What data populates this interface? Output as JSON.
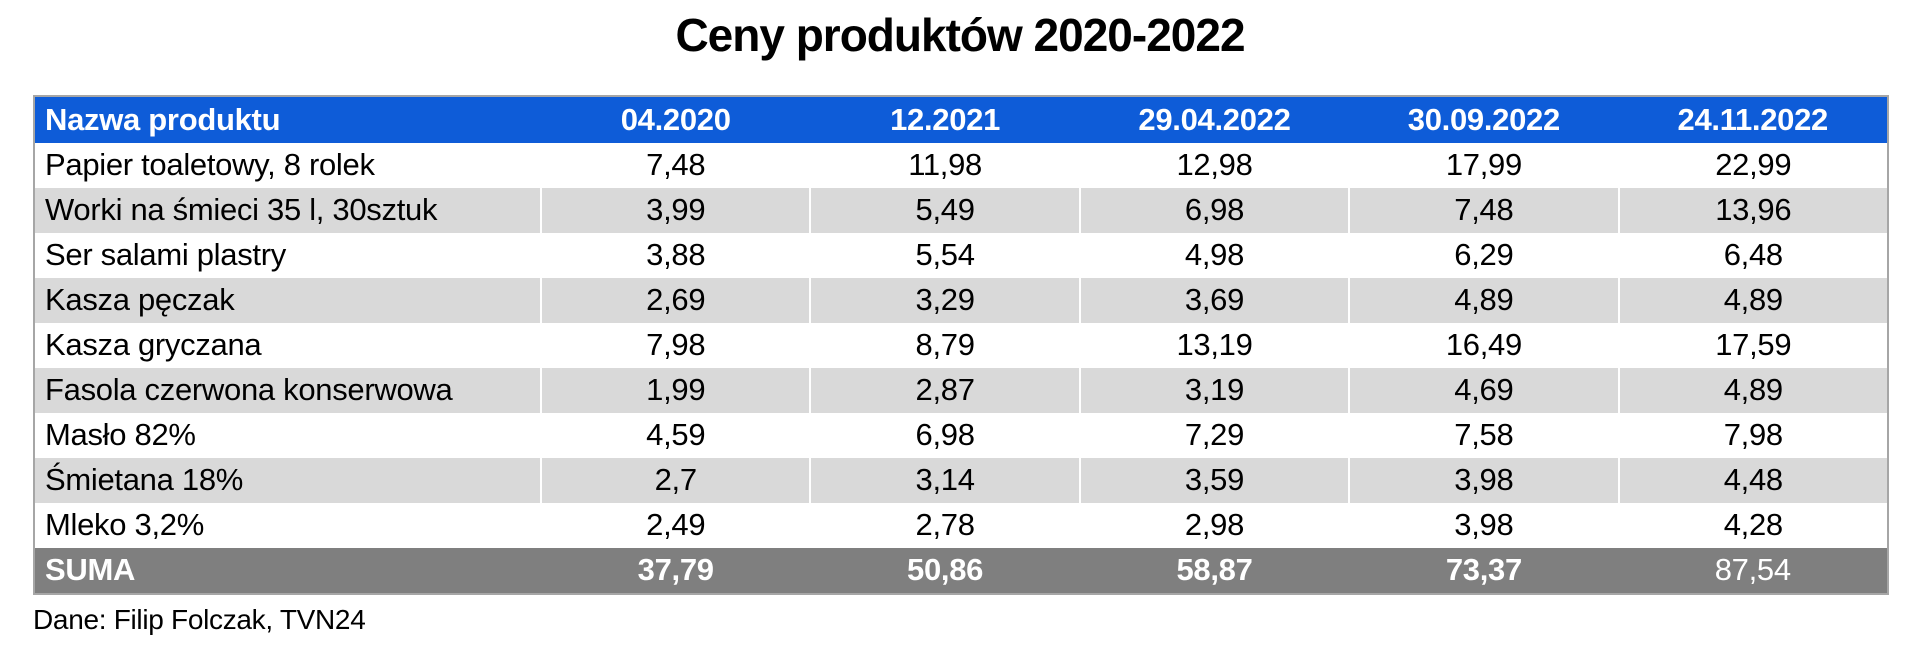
{
  "page": {
    "title": "Ceny produktów 2020-2022",
    "source": "Dane: Filip Folczak, TVN24"
  },
  "colors": {
    "header_bg": "#0e5cd8",
    "header_text": "#ffffff",
    "row_bg": "#ffffff",
    "row_alt_bg": "#d9d9d9",
    "total_row_bg": "#7f7f7f",
    "total_row_text": "#ffffff",
    "table_border": "#a6a6a6",
    "body_text": "#000000"
  },
  "chart_data": {
    "type": "table",
    "title": "Ceny produktów 2020-2022",
    "columns": [
      "Nazwa produktu",
      "04.2020",
      "12.2021",
      "29.04.2022",
      "30.09.2022",
      "24.11.2022"
    ],
    "rows": [
      {
        "name": "Papier toaletowy, 8 rolek",
        "values": [
          "7,48",
          "11,98",
          "12,98",
          "17,99",
          "22,99"
        ]
      },
      {
        "name": "Worki na śmieci 35 l, 30sztuk",
        "values": [
          "3,99",
          "5,49",
          "6,98",
          "7,48",
          "13,96"
        ]
      },
      {
        "name": "Ser salami plastry",
        "values": [
          "3,88",
          "5,54",
          "4,98",
          "6,29",
          "6,48"
        ]
      },
      {
        "name": "Kasza pęczak",
        "values": [
          "2,69",
          "3,29",
          "3,69",
          "4,89",
          "4,89"
        ]
      },
      {
        "name": "Kasza gryczana",
        "values": [
          "7,98",
          "8,79",
          "13,19",
          "16,49",
          "17,59"
        ]
      },
      {
        "name": "Fasola czerwona konserwowa",
        "values": [
          "1,99",
          "2,87",
          "3,19",
          "4,69",
          "4,89"
        ]
      },
      {
        "name": "Masło 82%",
        "values": [
          "4,59",
          "6,98",
          "7,29",
          "7,58",
          "7,98"
        ]
      },
      {
        "name": "Śmietana 18%",
        "values": [
          "2,7",
          "3,14",
          "3,59",
          "3,98",
          "4,48"
        ]
      },
      {
        "name": "Mleko 3,2%",
        "values": [
          "2,49",
          "2,78",
          "2,98",
          "3,98",
          "4,28"
        ]
      }
    ],
    "total_row": {
      "name": "SUMA",
      "values": [
        "37,79",
        "50,86",
        "58,87",
        "73,37",
        "87,54"
      ]
    },
    "source": "Dane: Filip Folczak, TVN24"
  }
}
